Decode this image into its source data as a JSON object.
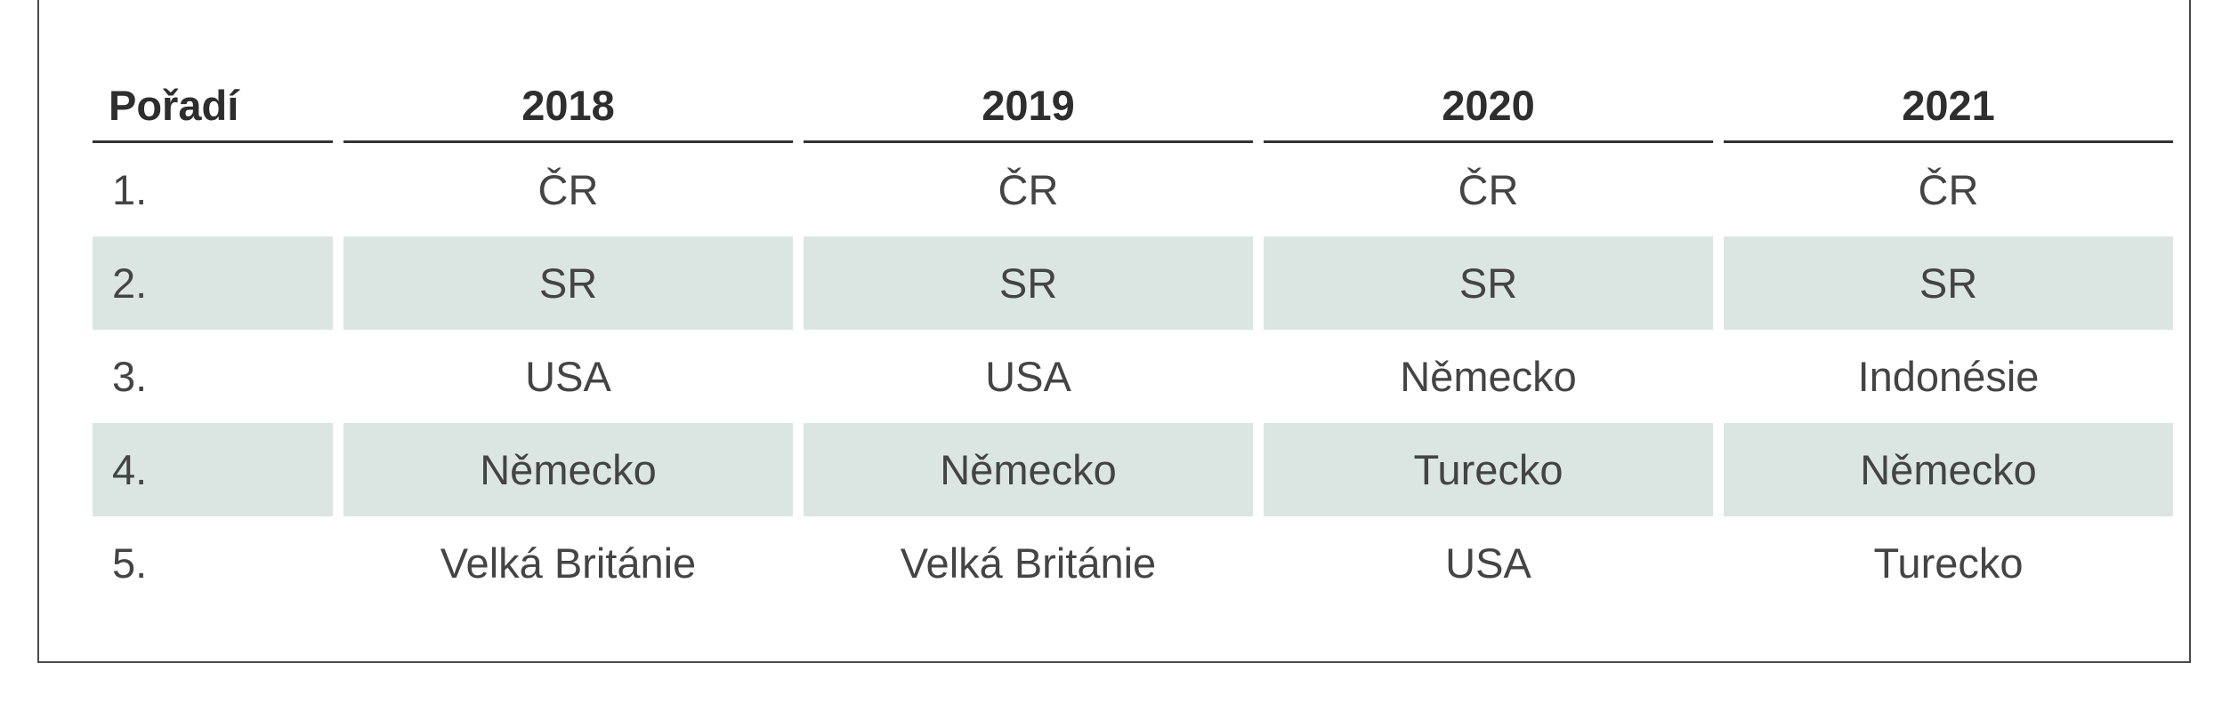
{
  "table": {
    "headers": [
      "Pořadí",
      "2018",
      "2019",
      "2020",
      "2021"
    ],
    "rows": [
      [
        "1.",
        "ČR",
        "ČR",
        "ČR",
        "ČR"
      ],
      [
        "2.",
        "SR",
        "SR",
        "SR",
        "SR"
      ],
      [
        "3.",
        "USA",
        "USA",
        "Německo",
        "Indonésie"
      ],
      [
        "4.",
        "Německo",
        "Německo",
        "Turecko",
        "Německo"
      ],
      [
        "5.",
        "Velká Británie",
        "Velká Británie",
        "USA",
        "Turecko"
      ]
    ],
    "row_shading_color": "#dbe6e3"
  }
}
